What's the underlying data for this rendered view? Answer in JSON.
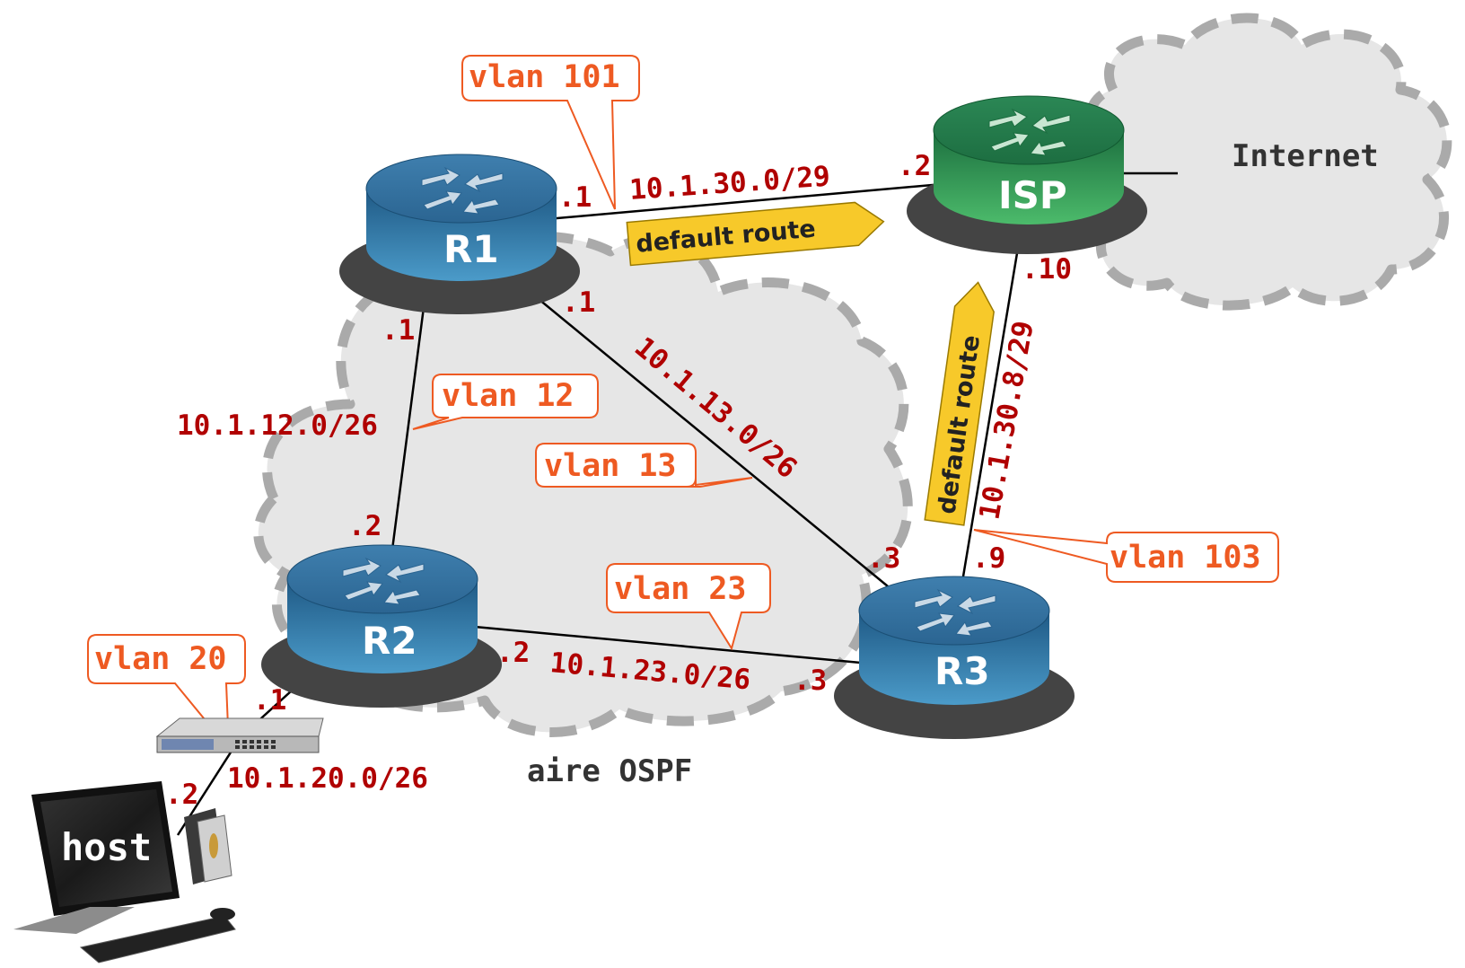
{
  "diagram": {
    "clouds": {
      "ospf_label": "aire OSPF",
      "internet_label": "Internet"
    },
    "routers": {
      "r1": "R1",
      "r2": "R2",
      "r3": "R3",
      "isp": "ISP"
    },
    "host_label": "host",
    "subnets": {
      "r1_isp": "10.1.30.0/29",
      "r1_r2": "10.1.12.0/26",
      "r1_r3": "10.1.13.0/26",
      "r2_r3": "10.1.23.0/26",
      "r3_isp": "10.1.30.8/29",
      "r2_host": "10.1.20.0/26"
    },
    "interfaces": {
      "r1_to_isp": ".1",
      "isp_to_r1": ".2",
      "r1_to_r3": ".1",
      "r1_to_r2": ".1",
      "r2_to_r1": ".2",
      "r3_to_r1": ".3",
      "r3_to_isp": ".9",
      "isp_to_r3": ".10",
      "r2_to_r3": ".2",
      "r3_to_r2": ".3",
      "r2_to_host": ".1",
      "host_to_r2": ".2"
    },
    "vlans": {
      "v101": "vlan 101",
      "v12": "vlan 12",
      "v13": "vlan 13",
      "v23": "vlan 23",
      "v20": "vlan 20",
      "v103": "vlan 103"
    },
    "banners": {
      "r1_isp": "default route",
      "r3_isp": "default route"
    },
    "colors": {
      "router_blue": "#2a6a98",
      "router_green": "#1f7a46",
      "cloud_fill": "#e6e6e6",
      "cloud_dash": "#aaaaaa",
      "ip_text": "#b00000",
      "vlan_text": "#ee5a22",
      "banner": "#f7c92a"
    }
  }
}
